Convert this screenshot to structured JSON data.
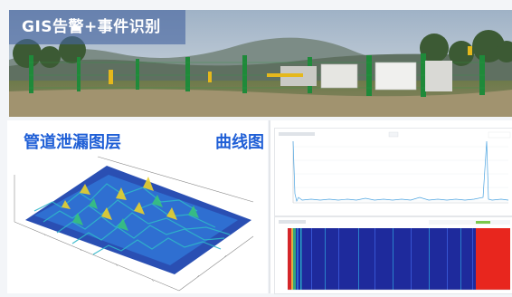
{
  "banner": {
    "title": "GIS告警+事件识别"
  },
  "left_panel": {
    "title": "管道泄漏图层"
  },
  "right_panel": {
    "title": "曲线图"
  },
  "colors": {
    "heading": "#1f5fd6",
    "banner_overlay": "#4664a0",
    "spectrogram_bg": "#1e2a9c",
    "spectrogram_alarm": "#e8261e"
  },
  "icons": {
    "photo": "site-photo",
    "surface": "3d-surface-plot",
    "spectrum": "waterfall-spectrogram"
  }
}
